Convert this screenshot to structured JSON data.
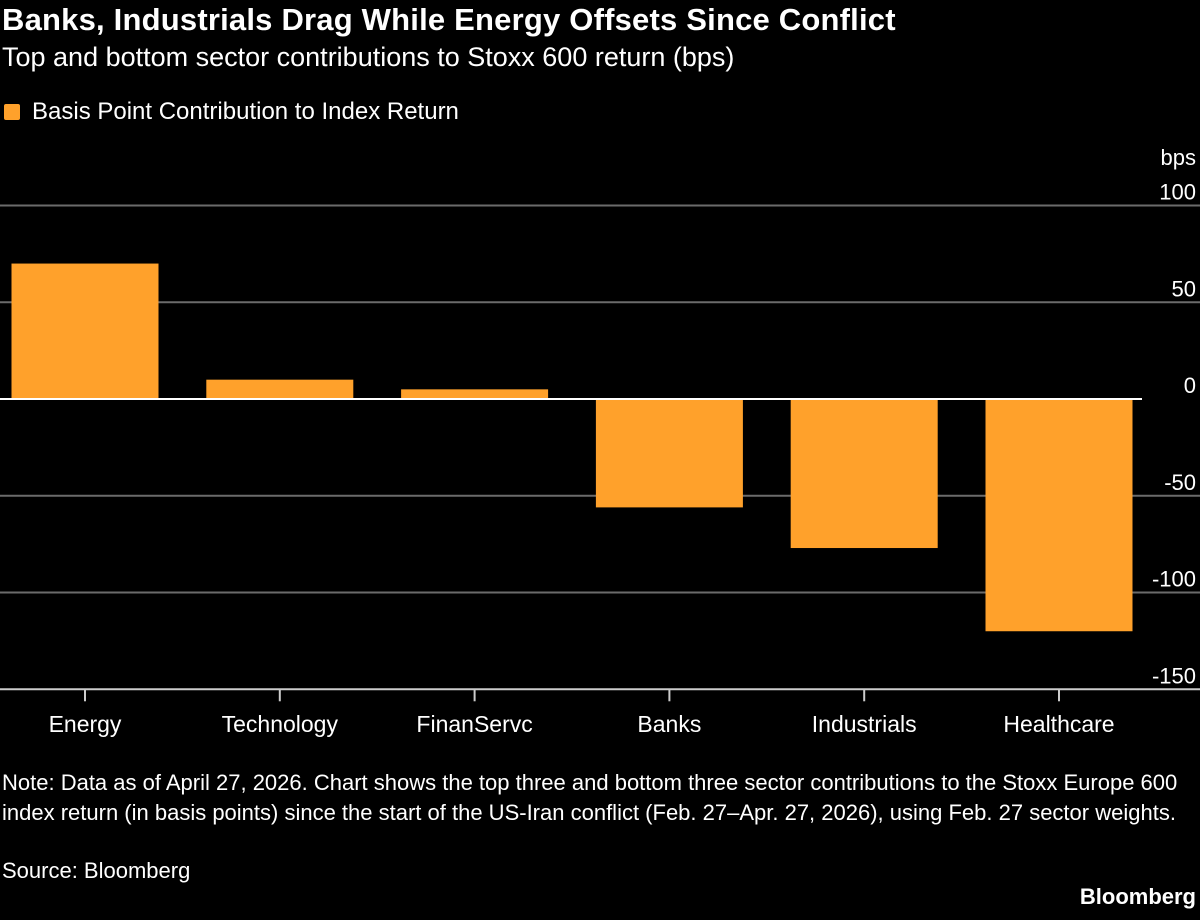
{
  "chart_data": {
    "type": "bar",
    "title": "Banks, Industrials Drag While Energy Offsets Since Conflict",
    "subtitle": "Top and bottom sector contributions to Stoxx 600 return (bps)",
    "legend": {
      "label": "Basis Point Contribution to Index Return",
      "placement": "top-left"
    },
    "categories": [
      "Energy",
      "Technology",
      "FinanServc",
      "Banks",
      "Industrials",
      "Healthcare"
    ],
    "series": [
      {
        "name": "Basis Point Contribution to Index Return",
        "values": [
          70,
          10,
          5,
          -56,
          -77,
          -120
        ]
      }
    ],
    "ylabel": "bps",
    "ylim": [
      -150,
      100
    ],
    "yticks": [
      100,
      50,
      0,
      -50,
      -100,
      -150
    ],
    "y_axis_position": "right",
    "grid": true,
    "bar_color": "#ffa12b",
    "background": "#000000"
  },
  "note": "Note: Data as of April 27, 2026. Chart shows the top three and bottom three sector contributions to the Stoxx Europe 600 index return (in basis points) since the start of the US-Iran conflict (Feb. 27–Apr. 27, 2026), using Feb. 27 sector weights.",
  "source": "Source: Bloomberg",
  "brand": "Bloomberg"
}
